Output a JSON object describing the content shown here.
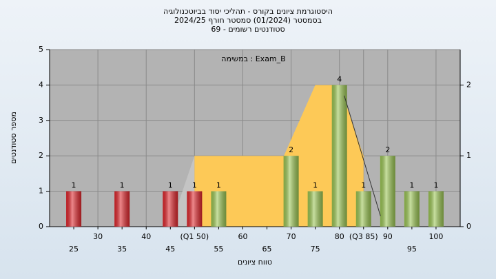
{
  "chart_data": {
    "type": "bar",
    "title": [
      "היסטוגרמת ציונים בקורס - תהליכי יסוד בביוטכנולוגיה",
      "בסמסטר  (01/2024)  סמסטר חורף 2024/25",
      "סטודנטים רשומים - 69"
    ],
    "annotation": "במשימה : Exam_B",
    "y_label": "מספר סטודנטים",
    "x_label": "טווח ציונים",
    "x": [
      25,
      35,
      45,
      50,
      55,
      70,
      75,
      80,
      85,
      90,
      95,
      100
    ],
    "values": [
      1,
      1,
      1,
      1,
      1,
      2,
      1,
      4,
      1,
      2,
      1,
      1
    ],
    "colors": [
      "#e0262c",
      "#e0262c",
      "#e0262c",
      "#e0262c",
      "#9bc653",
      "#9bc653",
      "#9bc653",
      "#9bc653",
      "#9bc653",
      "#9bc653",
      "#9bc653",
      "#9bc653"
    ],
    "area": {
      "color": "#fdc957",
      "x": [
        50,
        50,
        68.5,
        75,
        80,
        85,
        85
      ],
      "y": [
        0,
        2,
        2,
        4,
        4,
        2,
        0
      ]
    },
    "left_tail": {
      "color": "#c4c4c4",
      "x": [
        45,
        50,
        50
      ],
      "y": [
        0,
        2,
        0
      ]
    },
    "trend_line": {
      "color": "#333333",
      "x": [
        81,
        88.5
      ],
      "y": [
        3.7,
        0.3
      ]
    },
    "xlim": [
      20,
      105
    ],
    "xticks": [
      25,
      30,
      35,
      40,
      45,
      {
        "value": 50,
        "label": "(Q1 50)"
      },
      55,
      60,
      65,
      70,
      75,
      80,
      {
        "value": 85,
        "label": "(Q3 85)"
      },
      90,
      95,
      100
    ],
    "ylim": [
      0,
      5
    ],
    "yticks": [
      0,
      1,
      2,
      3,
      4,
      5
    ],
    "y2lim": [
      0,
      2.5
    ],
    "y2ticks": [
      0,
      1,
      2
    ],
    "grid": true
  }
}
